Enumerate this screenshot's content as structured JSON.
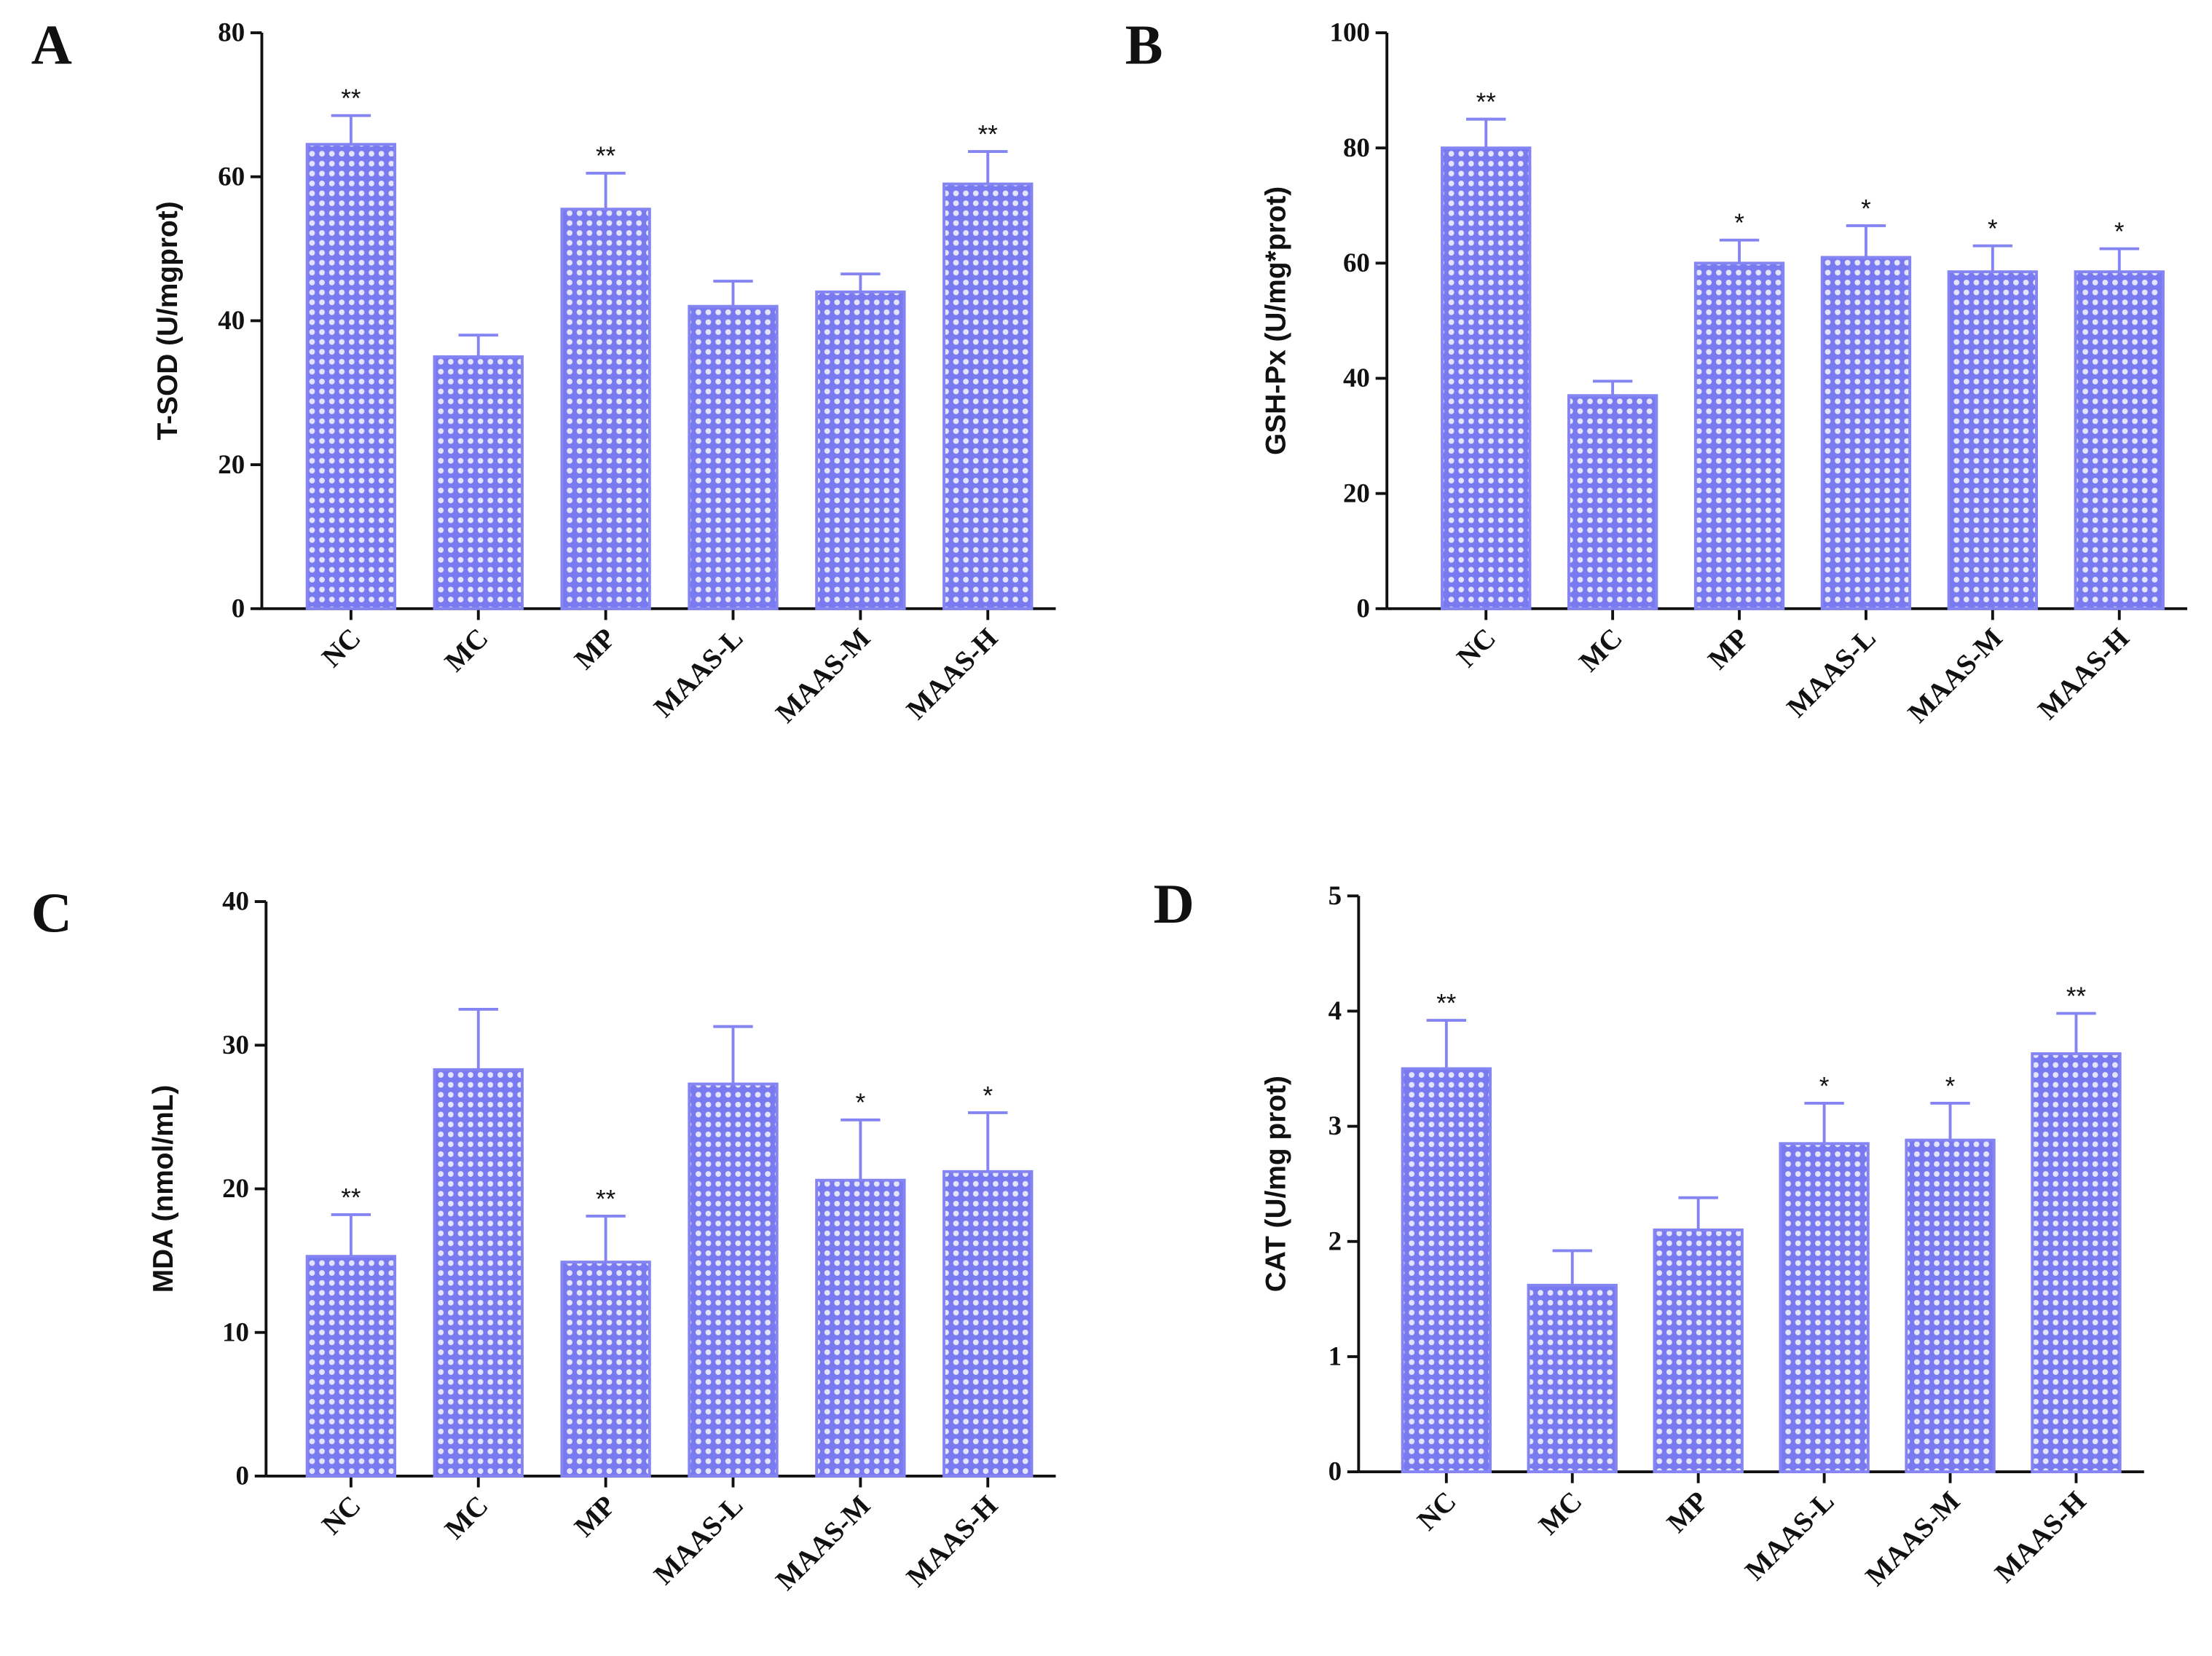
{
  "chart_data": [
    {
      "type": "bar",
      "label": "A",
      "ylabel": "T-SOD (U/mgprot)",
      "color": "#8484f2",
      "categories": [
        "NC",
        "MC",
        "MP",
        "MAAS-L",
        "MAAS-M",
        "MAAS-H"
      ],
      "values": [
        64.5,
        35,
        55.5,
        42,
        44,
        59
      ],
      "errors": [
        4,
        3,
        5,
        3.5,
        2.5,
        4.5
      ],
      "significance": [
        "**",
        null,
        "**",
        null,
        null,
        "**"
      ],
      "ylim": [
        0,
        80
      ],
      "yticks": [
        0,
        20,
        40,
        60,
        80
      ]
    },
    {
      "type": "bar",
      "label": "B",
      "ylabel": "GSH-Px (U/mg*prot)",
      "color": "#8484f2",
      "categories": [
        "NC",
        "MC",
        "MP",
        "MAAS-L",
        "MAAS-M",
        "MAAS-H"
      ],
      "values": [
        80,
        37,
        60,
        61,
        58.5,
        58.5
      ],
      "errors": [
        5,
        2.5,
        4,
        5.5,
        4.5,
        4
      ],
      "significance": [
        "**",
        null,
        "*",
        "*",
        "*",
        "*"
      ],
      "ylim": [
        0,
        100
      ],
      "yticks": [
        0,
        20,
        40,
        60,
        80,
        100
      ]
    },
    {
      "type": "bar",
      "label": "C",
      "ylabel": "MDA (nmol/mL)",
      "color": "#8484f2",
      "categories": [
        "NC",
        "MC",
        "MP",
        "MAAS-L",
        "MAAS-M",
        "MAAS-H"
      ],
      "values": [
        15.3,
        28.3,
        14.9,
        27.3,
        20.6,
        21.2
      ],
      "errors": [
        2.9,
        4.2,
        3.2,
        4,
        4.2,
        4.1
      ],
      "significance": [
        "**",
        null,
        "**",
        null,
        "*",
        "*"
      ],
      "ylim": [
        0,
        40
      ],
      "yticks": [
        0,
        10,
        20,
        30,
        40
      ]
    },
    {
      "type": "bar",
      "label": "D",
      "ylabel": "CAT (U/mg prot)",
      "color": "#8484f2",
      "categories": [
        "NC",
        "MC",
        "MP",
        "MAAS-L",
        "MAAS-M",
        "MAAS-H"
      ],
      "values": [
        3.5,
        1.62,
        2.1,
        2.85,
        2.88,
        3.63
      ],
      "errors": [
        0.42,
        0.3,
        0.28,
        0.35,
        0.32,
        0.35
      ],
      "significance": [
        "**",
        null,
        null,
        "*",
        "*",
        "**"
      ],
      "ylim": [
        0,
        5
      ],
      "yticks": [
        0,
        1,
        2,
        3,
        4,
        5
      ]
    }
  ]
}
